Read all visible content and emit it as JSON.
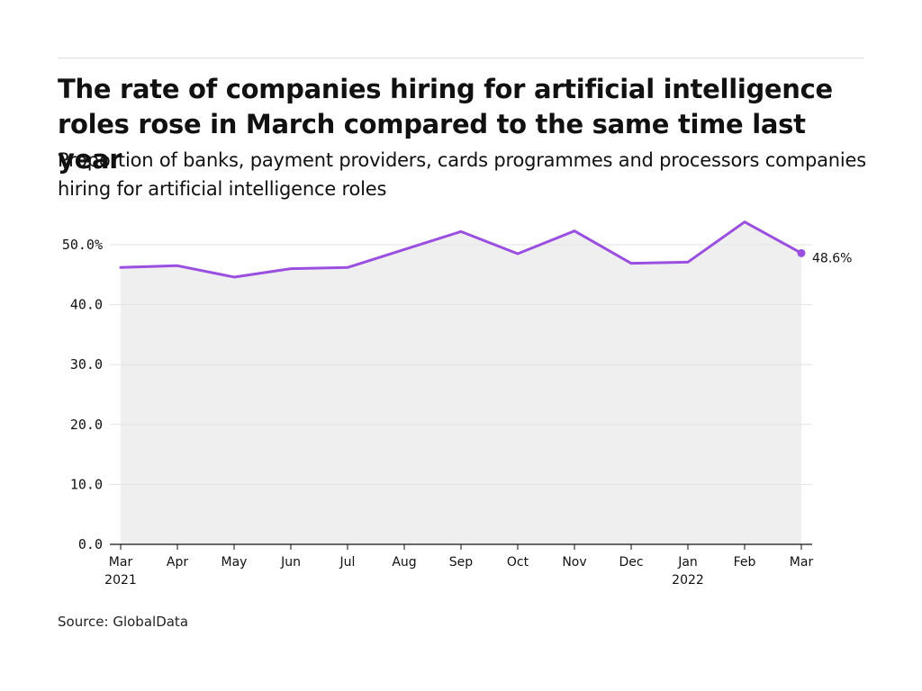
{
  "header": {
    "title": "The rate of companies hiring for artificial intelligence roles rose in March compared to the same time last year",
    "subtitle": "Proportion of banks, payment providers, cards programmes and processors companies hiring for artificial intelligence roles"
  },
  "footer": {
    "source": "Source: GlobalData"
  },
  "colors": {
    "line": "#9b4fe0",
    "area": "#efefef",
    "grid": "#e3e3e3",
    "axis": "#111111",
    "text": "#111111"
  },
  "chart_data": {
    "type": "area",
    "title": "The rate of companies hiring for artificial intelligence roles rose in March compared to the same time last year",
    "subtitle": "Proportion of banks, payment providers, cards programmes and processors companies hiring for artificial intelligence roles",
    "xlabel": "",
    "ylabel": "",
    "categories": [
      "Mar",
      "Apr",
      "May",
      "Jun",
      "Jul",
      "Aug",
      "Sep",
      "Oct",
      "Nov",
      "Dec",
      "Jan",
      "Feb",
      "Mar"
    ],
    "year_labels": [
      "2021",
      "",
      "",
      "",
      "",
      "",
      "",
      "",
      "",
      "",
      "2022",
      "",
      ""
    ],
    "series": [
      {
        "values": [
          46.2,
          46.5,
          44.6,
          46.0,
          46.2,
          49.2,
          52.2,
          48.5,
          52.3,
          46.9,
          47.1,
          53.8,
          48.6
        ]
      }
    ],
    "y_ticks": [
      0,
      10,
      20,
      30,
      40,
      50
    ],
    "y_tick_labels": [
      "0.0",
      "10.0",
      "20.0",
      "30.0",
      "40.0",
      "50.0%"
    ],
    "ylim": [
      0,
      50
    ],
    "grid": true,
    "end_label": "48.6%"
  }
}
